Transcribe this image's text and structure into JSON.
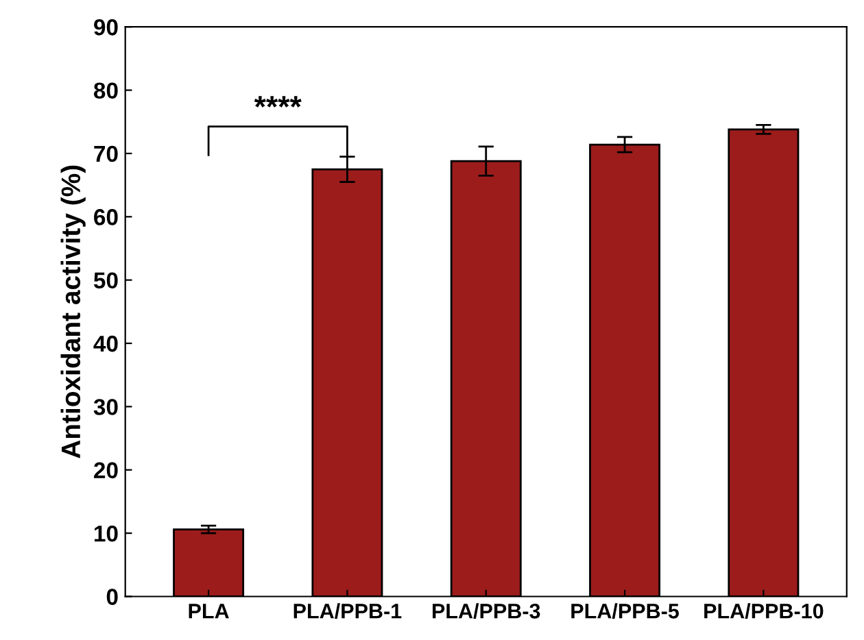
{
  "chart_data": {
    "type": "bar",
    "ylabel": "Antioxidant activity (%)",
    "categories": [
      "PLA",
      "PLA/PPB-1",
      "PLA/PPB-3",
      "PLA/PPB-5",
      "PLA/PPB-10"
    ],
    "values": [
      10.6,
      67.5,
      68.8,
      71.4,
      73.8
    ],
    "errors": [
      0.6,
      2.0,
      2.3,
      1.2,
      0.7
    ],
    "color": "#9c1c1c",
    "ylim": [
      0,
      90
    ],
    "yticks": [
      0,
      10,
      20,
      30,
      40,
      50,
      60,
      70,
      80,
      90
    ],
    "annotations": [
      "****"
    ],
    "grid": false
  }
}
